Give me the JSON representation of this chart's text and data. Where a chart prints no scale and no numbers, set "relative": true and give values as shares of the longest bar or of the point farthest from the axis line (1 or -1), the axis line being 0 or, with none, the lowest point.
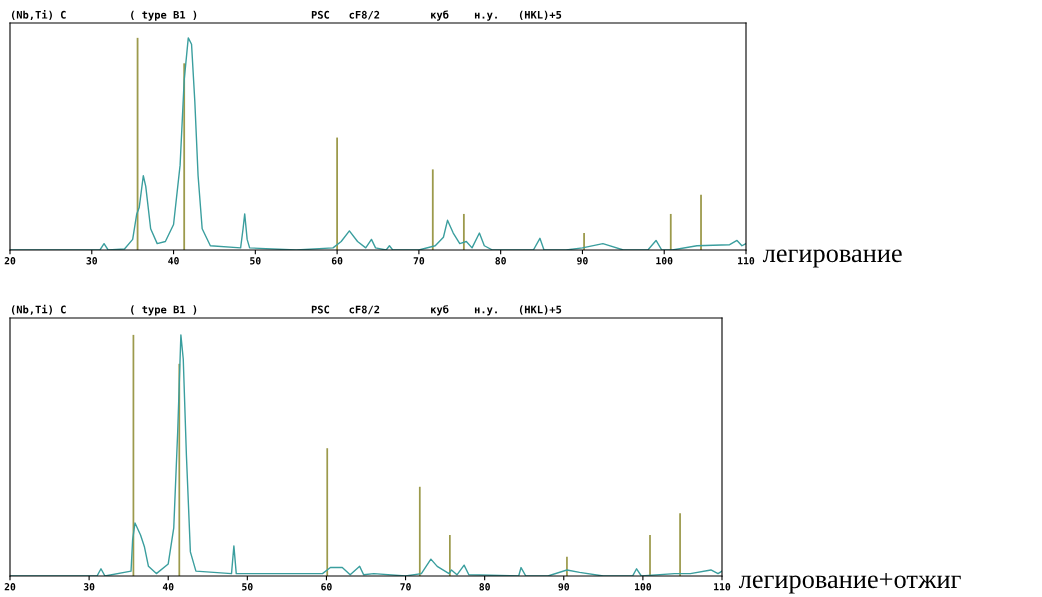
{
  "chart_data": [
    {
      "type": "line",
      "relative": true,
      "title": "(Nb,Ti) C          ( type B1 )                  PSC   cF8/2        куб    н.у.   (HKL)+5",
      "annotations": [
        "легирование"
      ],
      "xlim": [
        20,
        110
      ],
      "xticks": [
        20,
        30,
        40,
        50,
        60,
        70,
        80,
        90,
        100,
        110
      ],
      "tick_labels": "x",
      "grid": false,
      "legend": false,
      "series": [
        {
          "color": "#3a9e9e",
          "x": [
            20,
            30,
            31,
            31.5,
            32,
            34,
            35,
            35.5,
            35.8,
            36.3,
            36.6,
            37.2,
            38,
            39,
            40,
            40.8,
            41.3,
            41.8,
            42.2,
            42.6,
            43,
            43.5,
            44.5,
            48.2,
            48.5,
            48.7,
            49,
            49.3,
            55,
            59.5,
            60.5,
            61.5,
            62.5,
            63.5,
            64.2,
            64.7,
            66,
            66.4,
            66.8,
            70,
            72,
            73,
            73.5,
            74.2,
            75,
            75.8,
            76.5,
            77.4,
            78,
            79,
            84,
            84.8,
            85.3,
            88,
            90,
            92.5,
            95,
            98,
            99,
            99.7,
            101,
            104,
            108,
            108.9,
            109.5,
            110
          ],
          "values": [
            0,
            0,
            0,
            0.03,
            0,
            0.005,
            0.05,
            0.17,
            0.2,
            0.35,
            0.3,
            0.1,
            0.03,
            0.04,
            0.12,
            0.4,
            0.8,
            1.0,
            0.97,
            0.7,
            0.35,
            0.1,
            0.02,
            0.01,
            0.1,
            0.17,
            0.05,
            0.01,
            0,
            0.01,
            0.04,
            0.09,
            0.04,
            0.01,
            0.05,
            0.01,
            0,
            0.02,
            0,
            0,
            0.02,
            0.06,
            0.14,
            0.08,
            0.03,
            0.04,
            0.01,
            0.08,
            0.02,
            0,
            0,
            0.055,
            0,
            0,
            0.01,
            0.03,
            0,
            0,
            0.045,
            0,
            0,
            0.02,
            0.025,
            0.045,
            0.02,
            0.03
          ]
        },
        {
          "type": "bar",
          "color": "#9c9a4c",
          "x": [
            35.6,
            41.3,
            60.0,
            71.7,
            75.5,
            90.2,
            100.8,
            104.5
          ],
          "values": [
            1.0,
            0.88,
            0.53,
            0.38,
            0.17,
            0.08,
            0.17,
            0.26
          ]
        }
      ]
    },
    {
      "type": "line",
      "relative": true,
      "title": "(Nb,Ti) C          ( type B1 )                  PSC   cF8/2        куб    н.у.   (HKL)+5",
      "annotations": [
        "легирование+отжиг"
      ],
      "xlim": [
        20,
        110
      ],
      "xticks": [
        20,
        30,
        40,
        50,
        60,
        70,
        80,
        90,
        100,
        110
      ],
      "tick_labels": "x",
      "grid": false,
      "legend": false,
      "series": [
        {
          "color": "#3a9e9e",
          "x": [
            20,
            31,
            31.5,
            32,
            35.3,
            35.5,
            35.8,
            36.5,
            37,
            37.5,
            38.5,
            40,
            40.7,
            41.2,
            41.6,
            41.9,
            42.3,
            42.8,
            43.5,
            48,
            48.3,
            48.6,
            59.5,
            60.5,
            62,
            63,
            64.2,
            64.7,
            66,
            70,
            72,
            73.2,
            74,
            75.5,
            75.8,
            76.5,
            77.4,
            78,
            84.3,
            84.6,
            85.2,
            88,
            90.4,
            92,
            95,
            98.7,
            99.2,
            99.8,
            104,
            106,
            108.6,
            109.5,
            110
          ],
          "values": [
            0,
            0,
            0.03,
            0,
            0.02,
            0.15,
            0.22,
            0.17,
            0.12,
            0.04,
            0.01,
            0.05,
            0.2,
            0.6,
            1.0,
            0.9,
            0.5,
            0.1,
            0.02,
            0.01,
            0.125,
            0.01,
            0.01,
            0.035,
            0.035,
            0.005,
            0.04,
            0.005,
            0.01,
            0,
            0.01,
            0.07,
            0.04,
            0.01,
            0.025,
            0.005,
            0.045,
            0.005,
            0,
            0.035,
            0,
            0,
            0.025,
            0.015,
            0,
            0,
            0.03,
            0,
            0.01,
            0.01,
            0.025,
            0.01,
            0.02
          ]
        },
        {
          "type": "bar",
          "color": "#9c9a4c",
          "x": [
            35.6,
            41.4,
            60.1,
            71.8,
            75.6,
            90.4,
            100.9,
            104.7
          ],
          "values": [
            1.0,
            0.88,
            0.53,
            0.37,
            0.17,
            0.08,
            0.17,
            0.26
          ]
        }
      ]
    }
  ]
}
